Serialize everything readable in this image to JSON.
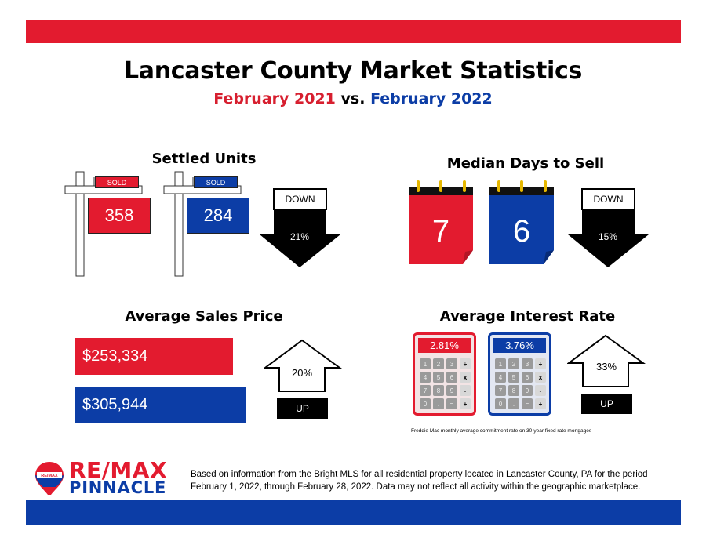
{
  "header": {
    "title": "Lancaster County Market Statistics",
    "sub_red": "February 2021",
    "sub_vs": "vs.",
    "sub_blue": "February 2022"
  },
  "settled": {
    "title": "Settled Units",
    "sold_label": "SOLD",
    "v2021": "358",
    "v2022": "284",
    "direction": "DOWN",
    "change": "21%"
  },
  "days": {
    "title": "Median Days to Sell",
    "v2021": "7",
    "v2022": "6",
    "direction": "DOWN",
    "change": "15%"
  },
  "price": {
    "title": "Average Sales Price",
    "v2021": "$253,334",
    "v2022": "$305,944",
    "direction": "UP",
    "change": "20%"
  },
  "interest": {
    "title": "Average Interest Rate",
    "v2021": "2.81%",
    "v2022": "3.76%",
    "direction": "UP",
    "change": "33%",
    "keys": [
      "1",
      "2",
      "3",
      "÷",
      "4",
      "5",
      "6",
      "x",
      "7",
      "8",
      "9",
      "-",
      "0",
      ".",
      "=",
      "+"
    ],
    "note": "Freddie Mac monthly average commitment rate on 30-year fixed rate mortgages"
  },
  "brand": {
    "name_top": "RE/MAX",
    "name_bottom": "PINNACLE",
    "balloon_text": "RE/MAX"
  },
  "footer": {
    "line1": "Based on information from the Bright MLS for all residential property located in Lancaster County, PA for the period",
    "line2": "February 1, 2022, through February 28, 2022.  Data may not reflect all activity within the geographic marketplace."
  },
  "colors": {
    "red": "#e31b2f",
    "blue": "#0c3da6"
  }
}
